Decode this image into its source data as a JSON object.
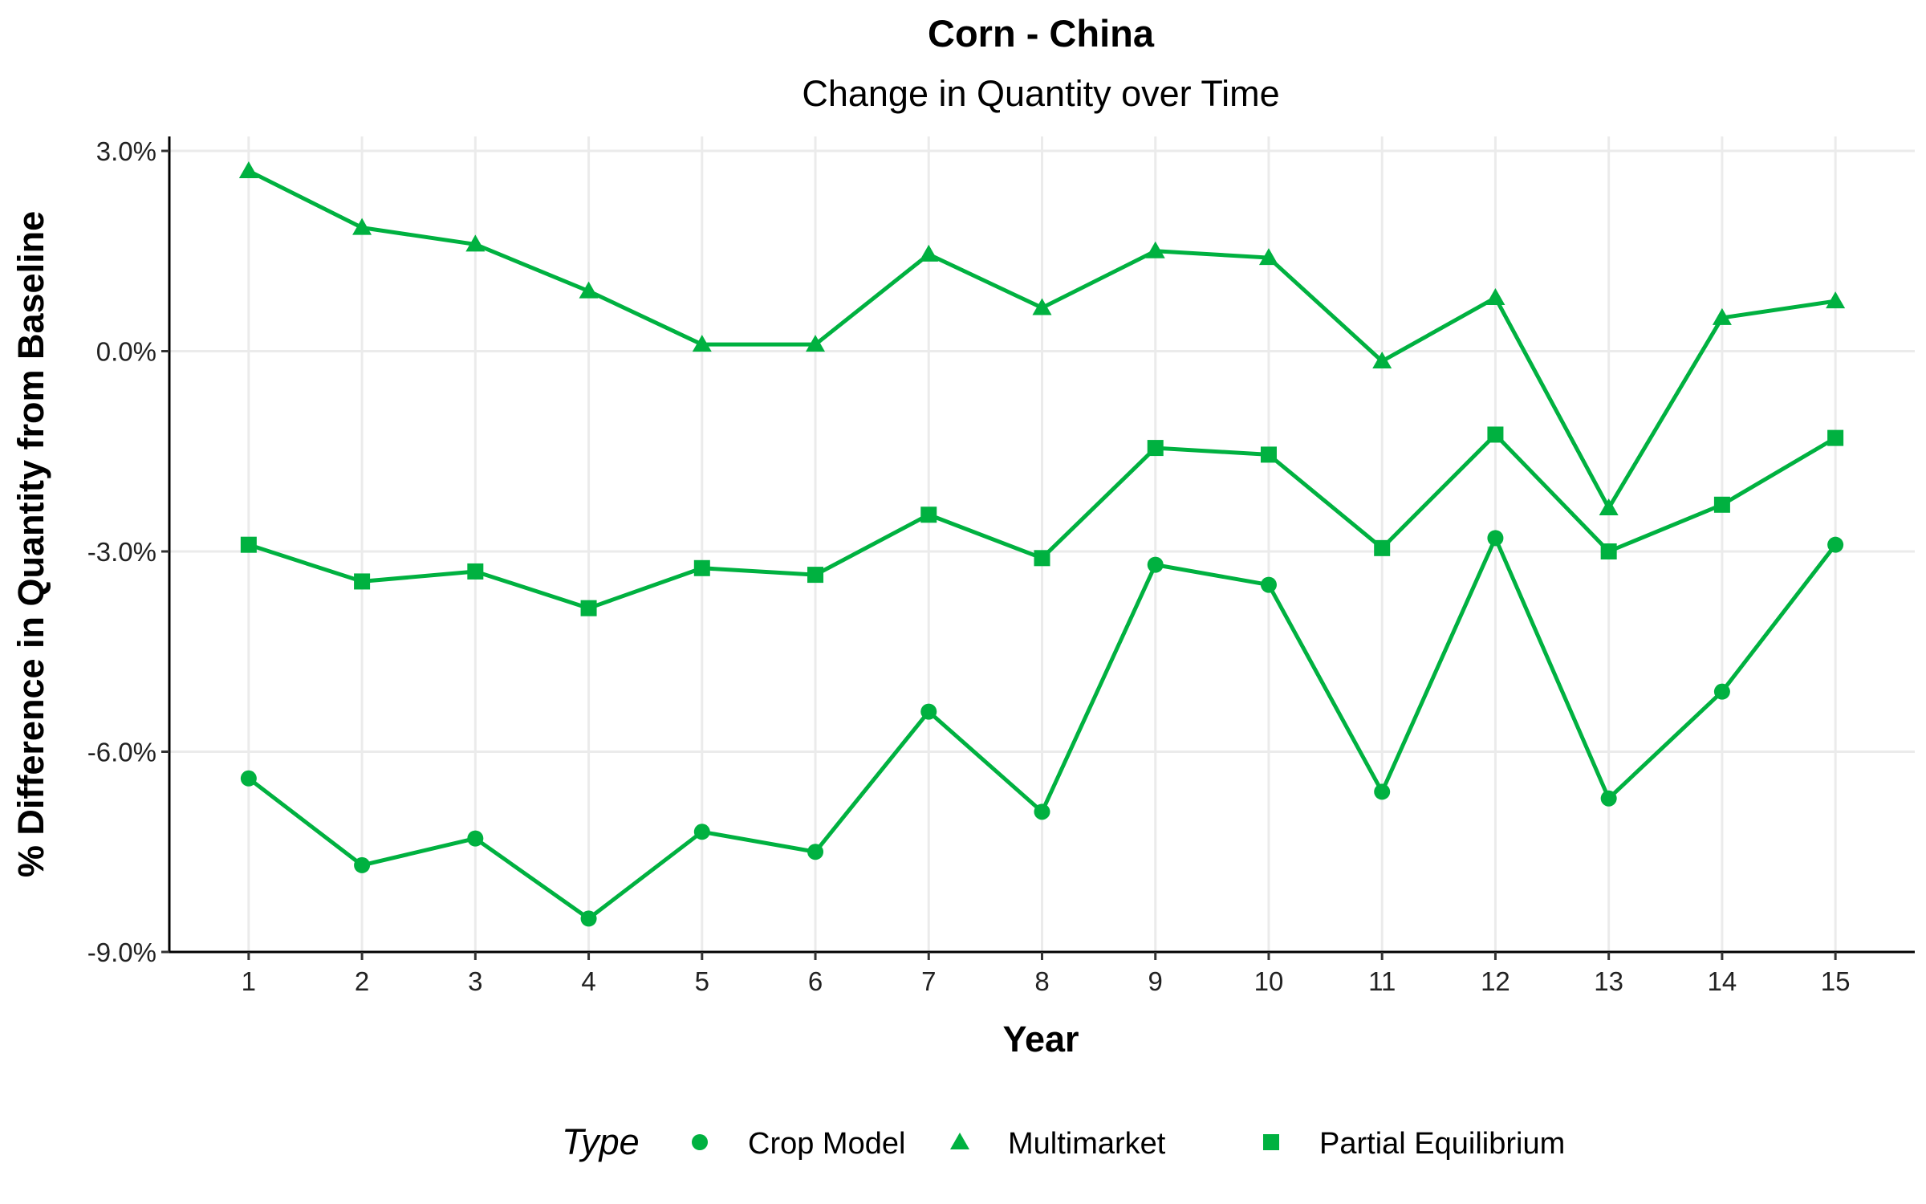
{
  "chart_data": {
    "type": "line",
    "title": "Corn - China",
    "subtitle": "Change in Quantity over Time",
    "xlabel": "Year",
    "ylabel": "% Difference in Quantity from Baseline",
    "x": [
      1,
      2,
      3,
      4,
      5,
      6,
      7,
      8,
      9,
      10,
      11,
      12,
      13,
      14,
      15
    ],
    "xlim": [
      0.3,
      15.7
    ],
    "ylim": [
      -9.0,
      3.0
    ],
    "y_ticks": [
      3.0,
      0.0,
      -3.0,
      -6.0,
      -9.0
    ],
    "y_tick_labels": [
      "3.0%",
      "0.0%",
      "-3.0%",
      "-6.0%",
      "-9.0%"
    ],
    "grid": true,
    "legend_position": "bottom",
    "legend_title": "Type",
    "line_color": "#00B140",
    "gridline_color": "#EBEBEB",
    "series": [
      {
        "name": "Crop Model",
        "marker": "circle",
        "values": [
          -6.4,
          -7.7,
          -7.3,
          -8.5,
          -7.2,
          -7.5,
          -5.4,
          -6.9,
          -3.2,
          -3.5,
          -6.6,
          -2.8,
          -6.7,
          -5.1,
          -2.9
        ]
      },
      {
        "name": "Multimarket",
        "marker": "triangle",
        "values": [
          2.7,
          1.85,
          1.6,
          0.9,
          0.1,
          0.1,
          1.45,
          0.65,
          1.5,
          1.4,
          -0.15,
          0.8,
          -2.35,
          0.5,
          0.75
        ]
      },
      {
        "name": "Partial Equilibrium",
        "marker": "square",
        "values": [
          -2.9,
          -3.45,
          -3.3,
          -3.85,
          -3.25,
          -3.35,
          -2.45,
          -3.1,
          -1.45,
          -1.55,
          -2.95,
          -1.25,
          -3.0,
          -2.3,
          -1.3
        ]
      }
    ]
  }
}
